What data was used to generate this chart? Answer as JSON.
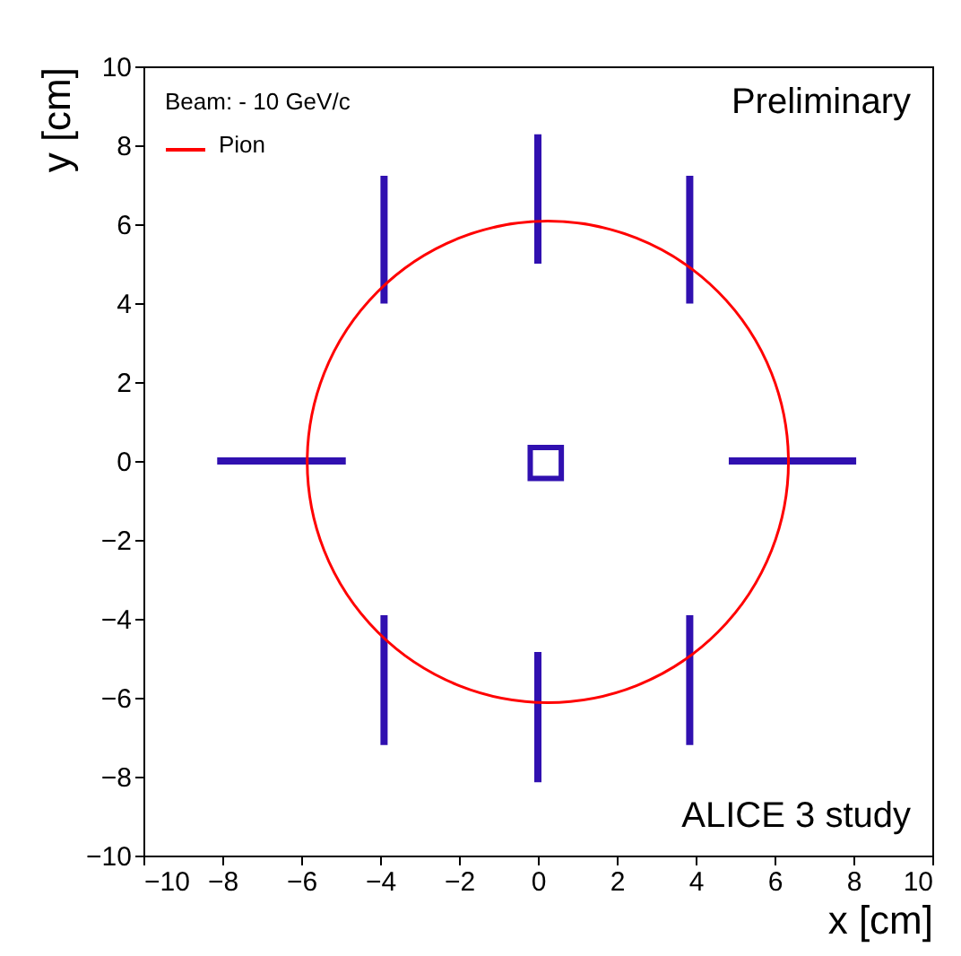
{
  "chart_data": {
    "type": "line",
    "xlabel": "x [cm]",
    "ylabel": "y [cm]",
    "grid": false,
    "xlim": [
      -10,
      10
    ],
    "xticks": [
      -10,
      -8,
      -6,
      -4,
      -2,
      0,
      2,
      4,
      6,
      8,
      10
    ],
    "ylim": [
      -10,
      10
    ],
    "yticks": [
      -10,
      -8,
      -6,
      -4,
      -2,
      0,
      2,
      4,
      6,
      8,
      10
    ],
    "annotations": [
      "Beam: - 10 GeV/c",
      "Pion",
      "Preliminary",
      "ALICE 3 study"
    ],
    "series": [
      {
        "color": "#3010b0",
        "x": [
          -8.13,
          -4.87
        ],
        "values": [
          0,
          0
        ]
      },
      {
        "color": "#3010b0",
        "x": [
          4.84,
          8.07
        ],
        "values": [
          0,
          0
        ]
      },
      {
        "color": "#3010b0",
        "x": [
          0,
          0
        ],
        "values": [
          8.28,
          5.0
        ]
      },
      {
        "color": "#3010b0",
        "x": [
          0,
          0
        ],
        "values": [
          -4.84,
          -8.14
        ]
      },
      {
        "color": "#3010b0",
        "x": [
          -3.9,
          -3.9
        ],
        "values": [
          7.23,
          3.99
        ]
      },
      {
        "color": "#3010b0",
        "x": [
          3.85,
          3.85
        ],
        "values": [
          7.23,
          3.99
        ]
      },
      {
        "color": "#3010b0",
        "x": [
          -3.9,
          -3.9
        ],
        "values": [
          -3.91,
          -7.2
        ]
      },
      {
        "color": "#3010b0",
        "x": [
          3.85,
          3.85
        ],
        "values": [
          -3.91,
          -7.2
        ]
      },
      {
        "type": "scatter",
        "marker": "square",
        "color": "#3010b0",
        "x": [
          0.2
        ],
        "values": [
          -0.05
        ]
      }
    ]
  }
}
